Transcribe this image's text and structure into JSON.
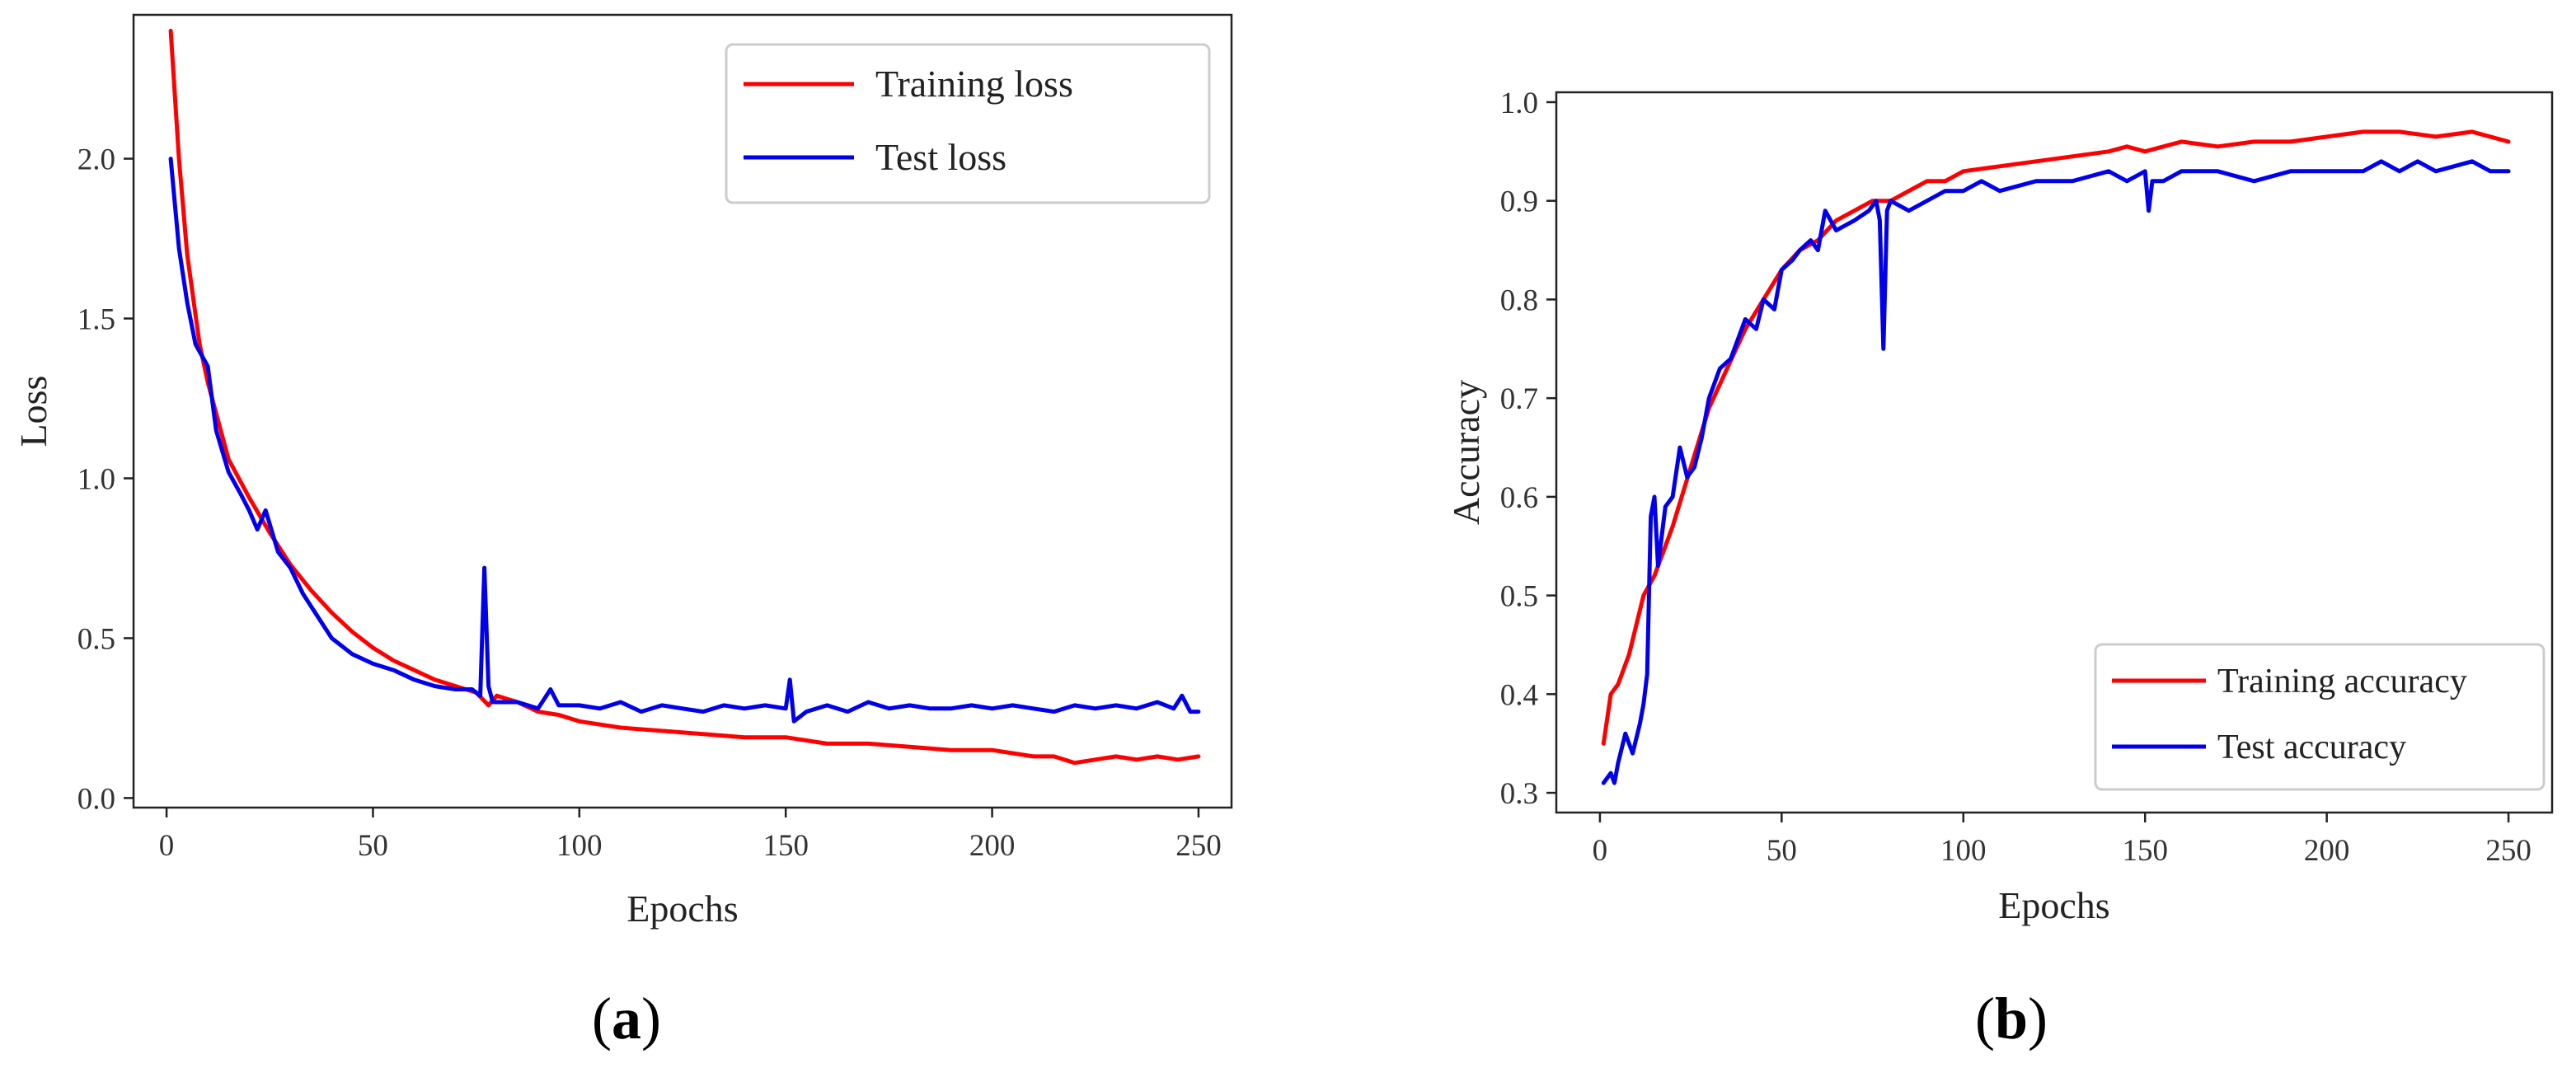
{
  "colors": {
    "train": "#ff0000",
    "test": "#0000ee",
    "axis": "#222222"
  },
  "panels": [
    {
      "label_open": "(",
      "label_letter": "a",
      "label_close": ")"
    },
    {
      "label_open": "(",
      "label_letter": "b",
      "label_close": ")"
    }
  ],
  "chart_data": [
    {
      "type": "line",
      "xlabel": "Epochs",
      "ylabel": "Loss",
      "xlim": [
        -8,
        258
      ],
      "ylim": [
        -0.03,
        2.45
      ],
      "xticks": [
        0,
        50,
        100,
        150,
        200,
        250
      ],
      "yticks": [
        0.0,
        0.5,
        1.0,
        1.5,
        2.0
      ],
      "ytick_labels": [
        "0.0",
        "0.5",
        "1.0",
        "1.5",
        "2.0"
      ],
      "legend_position": "top-right",
      "series": [
        {
          "name": "Training loss",
          "color": "#ff0000",
          "x": [
            1,
            3,
            5,
            8,
            10,
            15,
            20,
            25,
            30,
            35,
            40,
            45,
            50,
            55,
            60,
            65,
            70,
            75,
            78,
            80,
            85,
            90,
            95,
            100,
            110,
            120,
            130,
            140,
            150,
            160,
            170,
            180,
            190,
            200,
            210,
            215,
            220,
            225,
            230,
            235,
            240,
            245,
            250
          ],
          "y": [
            2.4,
            2.0,
            1.7,
            1.42,
            1.3,
            1.06,
            0.94,
            0.83,
            0.73,
            0.65,
            0.58,
            0.52,
            0.47,
            0.43,
            0.4,
            0.37,
            0.35,
            0.33,
            0.29,
            0.32,
            0.3,
            0.27,
            0.26,
            0.24,
            0.22,
            0.21,
            0.2,
            0.19,
            0.19,
            0.17,
            0.17,
            0.16,
            0.15,
            0.15,
            0.13,
            0.13,
            0.11,
            0.12,
            0.13,
            0.12,
            0.13,
            0.12,
            0.13
          ]
        },
        {
          "name": "Test loss",
          "color": "#0000ee",
          "x": [
            1,
            3,
            5,
            7,
            10,
            12,
            15,
            18,
            20,
            22,
            24,
            27,
            30,
            33,
            36,
            40,
            45,
            50,
            55,
            60,
            65,
            70,
            74,
            76,
            77,
            78,
            79,
            81,
            85,
            90,
            93,
            95,
            100,
            105,
            110,
            115,
            120,
            125,
            130,
            135,
            140,
            145,
            150,
            151,
            152,
            155,
            160,
            165,
            170,
            175,
            180,
            185,
            190,
            195,
            200,
            205,
            210,
            215,
            220,
            225,
            230,
            235,
            240,
            244,
            246,
            248,
            250
          ],
          "y": [
            2.0,
            1.72,
            1.55,
            1.42,
            1.35,
            1.15,
            1.02,
            0.95,
            0.9,
            0.84,
            0.9,
            0.77,
            0.72,
            0.64,
            0.58,
            0.5,
            0.45,
            0.42,
            0.4,
            0.37,
            0.35,
            0.34,
            0.34,
            0.32,
            0.72,
            0.35,
            0.3,
            0.3,
            0.3,
            0.28,
            0.34,
            0.29,
            0.29,
            0.28,
            0.3,
            0.27,
            0.29,
            0.28,
            0.27,
            0.29,
            0.28,
            0.29,
            0.28,
            0.37,
            0.24,
            0.27,
            0.29,
            0.27,
            0.3,
            0.28,
            0.29,
            0.28,
            0.28,
            0.29,
            0.28,
            0.29,
            0.28,
            0.27,
            0.29,
            0.28,
            0.29,
            0.28,
            0.3,
            0.28,
            0.32,
            0.27,
            0.27
          ]
        }
      ]
    },
    {
      "type": "line",
      "xlabel": "Epochs",
      "ylabel": "Accuracy",
      "xlim": [
        -12,
        262
      ],
      "ylim": [
        0.28,
        1.01
      ],
      "xticks": [
        0,
        50,
        100,
        150,
        200,
        250
      ],
      "yticks": [
        0.3,
        0.4,
        0.5,
        0.6,
        0.7,
        0.8,
        0.9,
        1.0
      ],
      "ytick_labels": [
        "0.3",
        "0.4",
        "0.5",
        "0.6",
        "0.7",
        "0.8",
        "0.9",
        "1.0"
      ],
      "legend_position": "bottom-right",
      "series": [
        {
          "name": "Training accuracy",
          "color": "#ff0000",
          "x": [
            1,
            3,
            5,
            8,
            10,
            12,
            15,
            18,
            20,
            25,
            30,
            35,
            40,
            45,
            50,
            55,
            60,
            65,
            70,
            75,
            80,
            85,
            90,
            95,
            100,
            110,
            120,
            130,
            140,
            145,
            150,
            160,
            170,
            180,
            190,
            200,
            210,
            220,
            230,
            240,
            245,
            250
          ],
          "y": [
            0.35,
            0.4,
            0.41,
            0.44,
            0.47,
            0.5,
            0.52,
            0.55,
            0.57,
            0.63,
            0.69,
            0.73,
            0.77,
            0.8,
            0.83,
            0.85,
            0.86,
            0.88,
            0.89,
            0.9,
            0.9,
            0.91,
            0.92,
            0.92,
            0.93,
            0.935,
            0.94,
            0.945,
            0.95,
            0.955,
            0.95,
            0.96,
            0.955,
            0.96,
            0.96,
            0.965,
            0.97,
            0.97,
            0.965,
            0.97,
            0.965,
            0.96
          ]
        },
        {
          "name": "Test accuracy",
          "color": "#0000ee",
          "x": [
            1,
            3,
            4,
            5,
            7,
            9,
            11,
            12,
            13,
            14,
            15,
            16,
            18,
            20,
            22,
            24,
            26,
            28,
            30,
            33,
            36,
            40,
            43,
            45,
            48,
            50,
            53,
            55,
            58,
            60,
            62,
            65,
            70,
            74,
            76,
            77,
            78,
            79,
            80,
            85,
            90,
            95,
            100,
            105,
            110,
            120,
            130,
            140,
            145,
            150,
            151,
            152,
            155,
            160,
            170,
            180,
            190,
            200,
            210,
            215,
            220,
            225,
            230,
            240,
            245,
            250
          ],
          "y": [
            0.31,
            0.32,
            0.31,
            0.33,
            0.36,
            0.34,
            0.37,
            0.39,
            0.42,
            0.58,
            0.6,
            0.53,
            0.59,
            0.6,
            0.65,
            0.62,
            0.63,
            0.66,
            0.7,
            0.73,
            0.74,
            0.78,
            0.77,
            0.8,
            0.79,
            0.83,
            0.84,
            0.85,
            0.86,
            0.85,
            0.89,
            0.87,
            0.88,
            0.89,
            0.9,
            0.88,
            0.75,
            0.89,
            0.9,
            0.89,
            0.9,
            0.91,
            0.91,
            0.92,
            0.91,
            0.92,
            0.92,
            0.93,
            0.92,
            0.93,
            0.89,
            0.92,
            0.92,
            0.93,
            0.93,
            0.92,
            0.93,
            0.93,
            0.93,
            0.94,
            0.93,
            0.94,
            0.93,
            0.94,
            0.93,
            0.93
          ]
        }
      ]
    }
  ]
}
